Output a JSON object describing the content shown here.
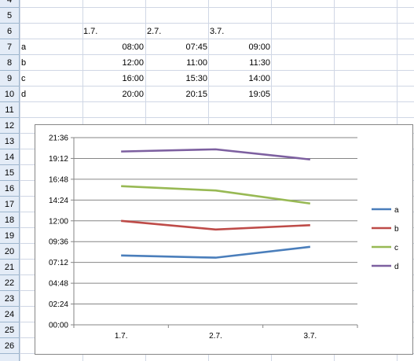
{
  "rows": [
    "4",
    "5",
    "6",
    "7",
    "8",
    "9",
    "10",
    "11",
    "12",
    "13",
    "14",
    "15",
    "16",
    "17",
    "18",
    "19",
    "20",
    "21",
    "22",
    "23",
    "24",
    "25",
    "26"
  ],
  "header_row": {
    "c1": "",
    "c2": "1.7.",
    "c3": "2.7.",
    "c4": "3.7."
  },
  "table": [
    {
      "label": "a",
      "v1": "08:00",
      "v2": "07:45",
      "v3": "09:00"
    },
    {
      "label": "b",
      "v1": "12:00",
      "v2": "11:00",
      "v3": "11:30"
    },
    {
      "label": "c",
      "v1": "16:00",
      "v2": "15:30",
      "v3": "14:00"
    },
    {
      "label": "d",
      "v1": "20:00",
      "v2": "20:15",
      "v3": "19:05"
    }
  ],
  "chart_data": {
    "type": "line",
    "categories": [
      "1.7.",
      "2.7.",
      "3.7."
    ],
    "y_ticks": [
      "00:00",
      "02:24",
      "04:48",
      "07:12",
      "09:36",
      "12:00",
      "14:24",
      "16:48",
      "19:12",
      "21:36"
    ],
    "ylim_hours": [
      0,
      21.6
    ],
    "grid": true,
    "legend_position": "right",
    "series": [
      {
        "name": "a",
        "color": "#4a7ebb",
        "values_hours": [
          8.0,
          7.75,
          9.0
        ]
      },
      {
        "name": "b",
        "color": "#be4b48",
        "values_hours": [
          12.0,
          11.0,
          11.5
        ]
      },
      {
        "name": "c",
        "color": "#98b954",
        "values_hours": [
          16.0,
          15.5,
          14.0
        ]
      },
      {
        "name": "d",
        "color": "#7d60a0",
        "values_hours": [
          20.0,
          20.25,
          19.0833
        ]
      }
    ]
  }
}
